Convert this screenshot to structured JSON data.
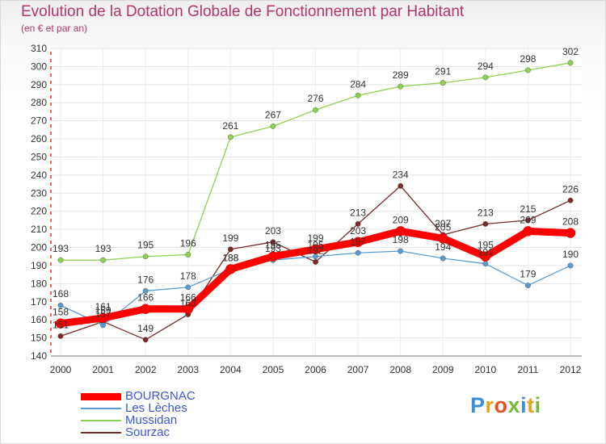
{
  "chart_data": {
    "type": "line",
    "title": "Evolution de la Dotation Globale de Fonctionnement par Habitant",
    "subtitle": "(en € et par an)",
    "x": [
      "2000",
      "2001",
      "2002",
      "2003",
      "2004",
      "2005",
      "2006",
      "2007",
      "2008",
      "2009",
      "2010",
      "2011",
      "2012"
    ],
    "ylim": [
      140,
      310
    ],
    "yticks": [
      140,
      150,
      160,
      170,
      180,
      190,
      200,
      210,
      220,
      230,
      240,
      250,
      260,
      270,
      280,
      290,
      300,
      310
    ],
    "grid": true,
    "legend_position": "bottom-left",
    "series": [
      {
        "name": "BOURGNAC",
        "color": "#ff0000",
        "values": [
          158,
          161,
          166,
          166,
          188,
          195,
          199,
          203,
          209,
          205,
          195,
          209,
          208
        ]
      },
      {
        "name": "Les Lèches",
        "color": "#5b9bd5",
        "values": [
          168,
          157,
          176,
          178,
          188,
          193,
          195,
          197,
          198,
          194,
          191,
          179,
          190
        ]
      },
      {
        "name": "Mussidan",
        "color": "#8fd14f",
        "values": [
          193,
          193,
          195,
          196,
          261,
          267,
          276,
          284,
          289,
          291,
          294,
          298,
          302
        ]
      },
      {
        "name": "Sourzac",
        "color": "#7b2a2a",
        "values": [
          151,
          159,
          149,
          163,
          199,
          203,
          192,
          213,
          234,
          207,
          213,
          215,
          226
        ]
      }
    ]
  },
  "logo": {
    "letters": [
      "P",
      "r",
      "o",
      "x",
      "i",
      "t",
      "i"
    ],
    "colors": [
      "#3d8fd4",
      "#e8a41c",
      "#e6522c",
      "#7aba3a",
      "#3d8fd4",
      "#e8a41c",
      "#7aba3a"
    ]
  }
}
